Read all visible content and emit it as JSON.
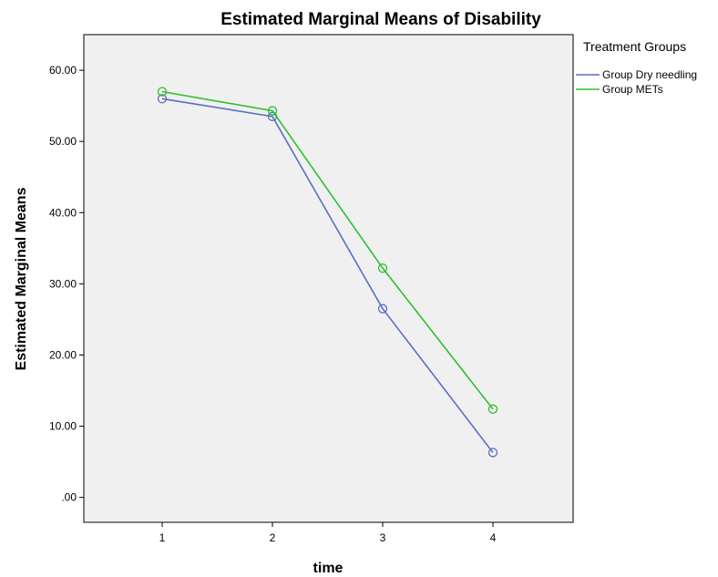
{
  "chart_data": {
    "type": "line",
    "title": "Estimated Marginal Means of Disability",
    "xlabel": "time",
    "ylabel": "Estimated Marginal Means",
    "categories": [
      "1",
      "2",
      "3",
      "4"
    ],
    "yticks": [
      ".00",
      "10.00",
      "20.00",
      "30.00",
      "40.00",
      "50.00",
      "60.00"
    ],
    "ylim": [
      -3.5,
      65
    ],
    "grid": false,
    "legend": {
      "title": "Treatment Groups",
      "placement": "right"
    },
    "series": [
      {
        "name": "Group Dry needling",
        "values": [
          56.0,
          53.5,
          26.5,
          6.3
        ],
        "color": "#5b6fc3"
      },
      {
        "name": "Group METs",
        "values": [
          57.0,
          54.3,
          32.2,
          12.4
        ],
        "color": "#2fbf2f"
      }
    ]
  }
}
